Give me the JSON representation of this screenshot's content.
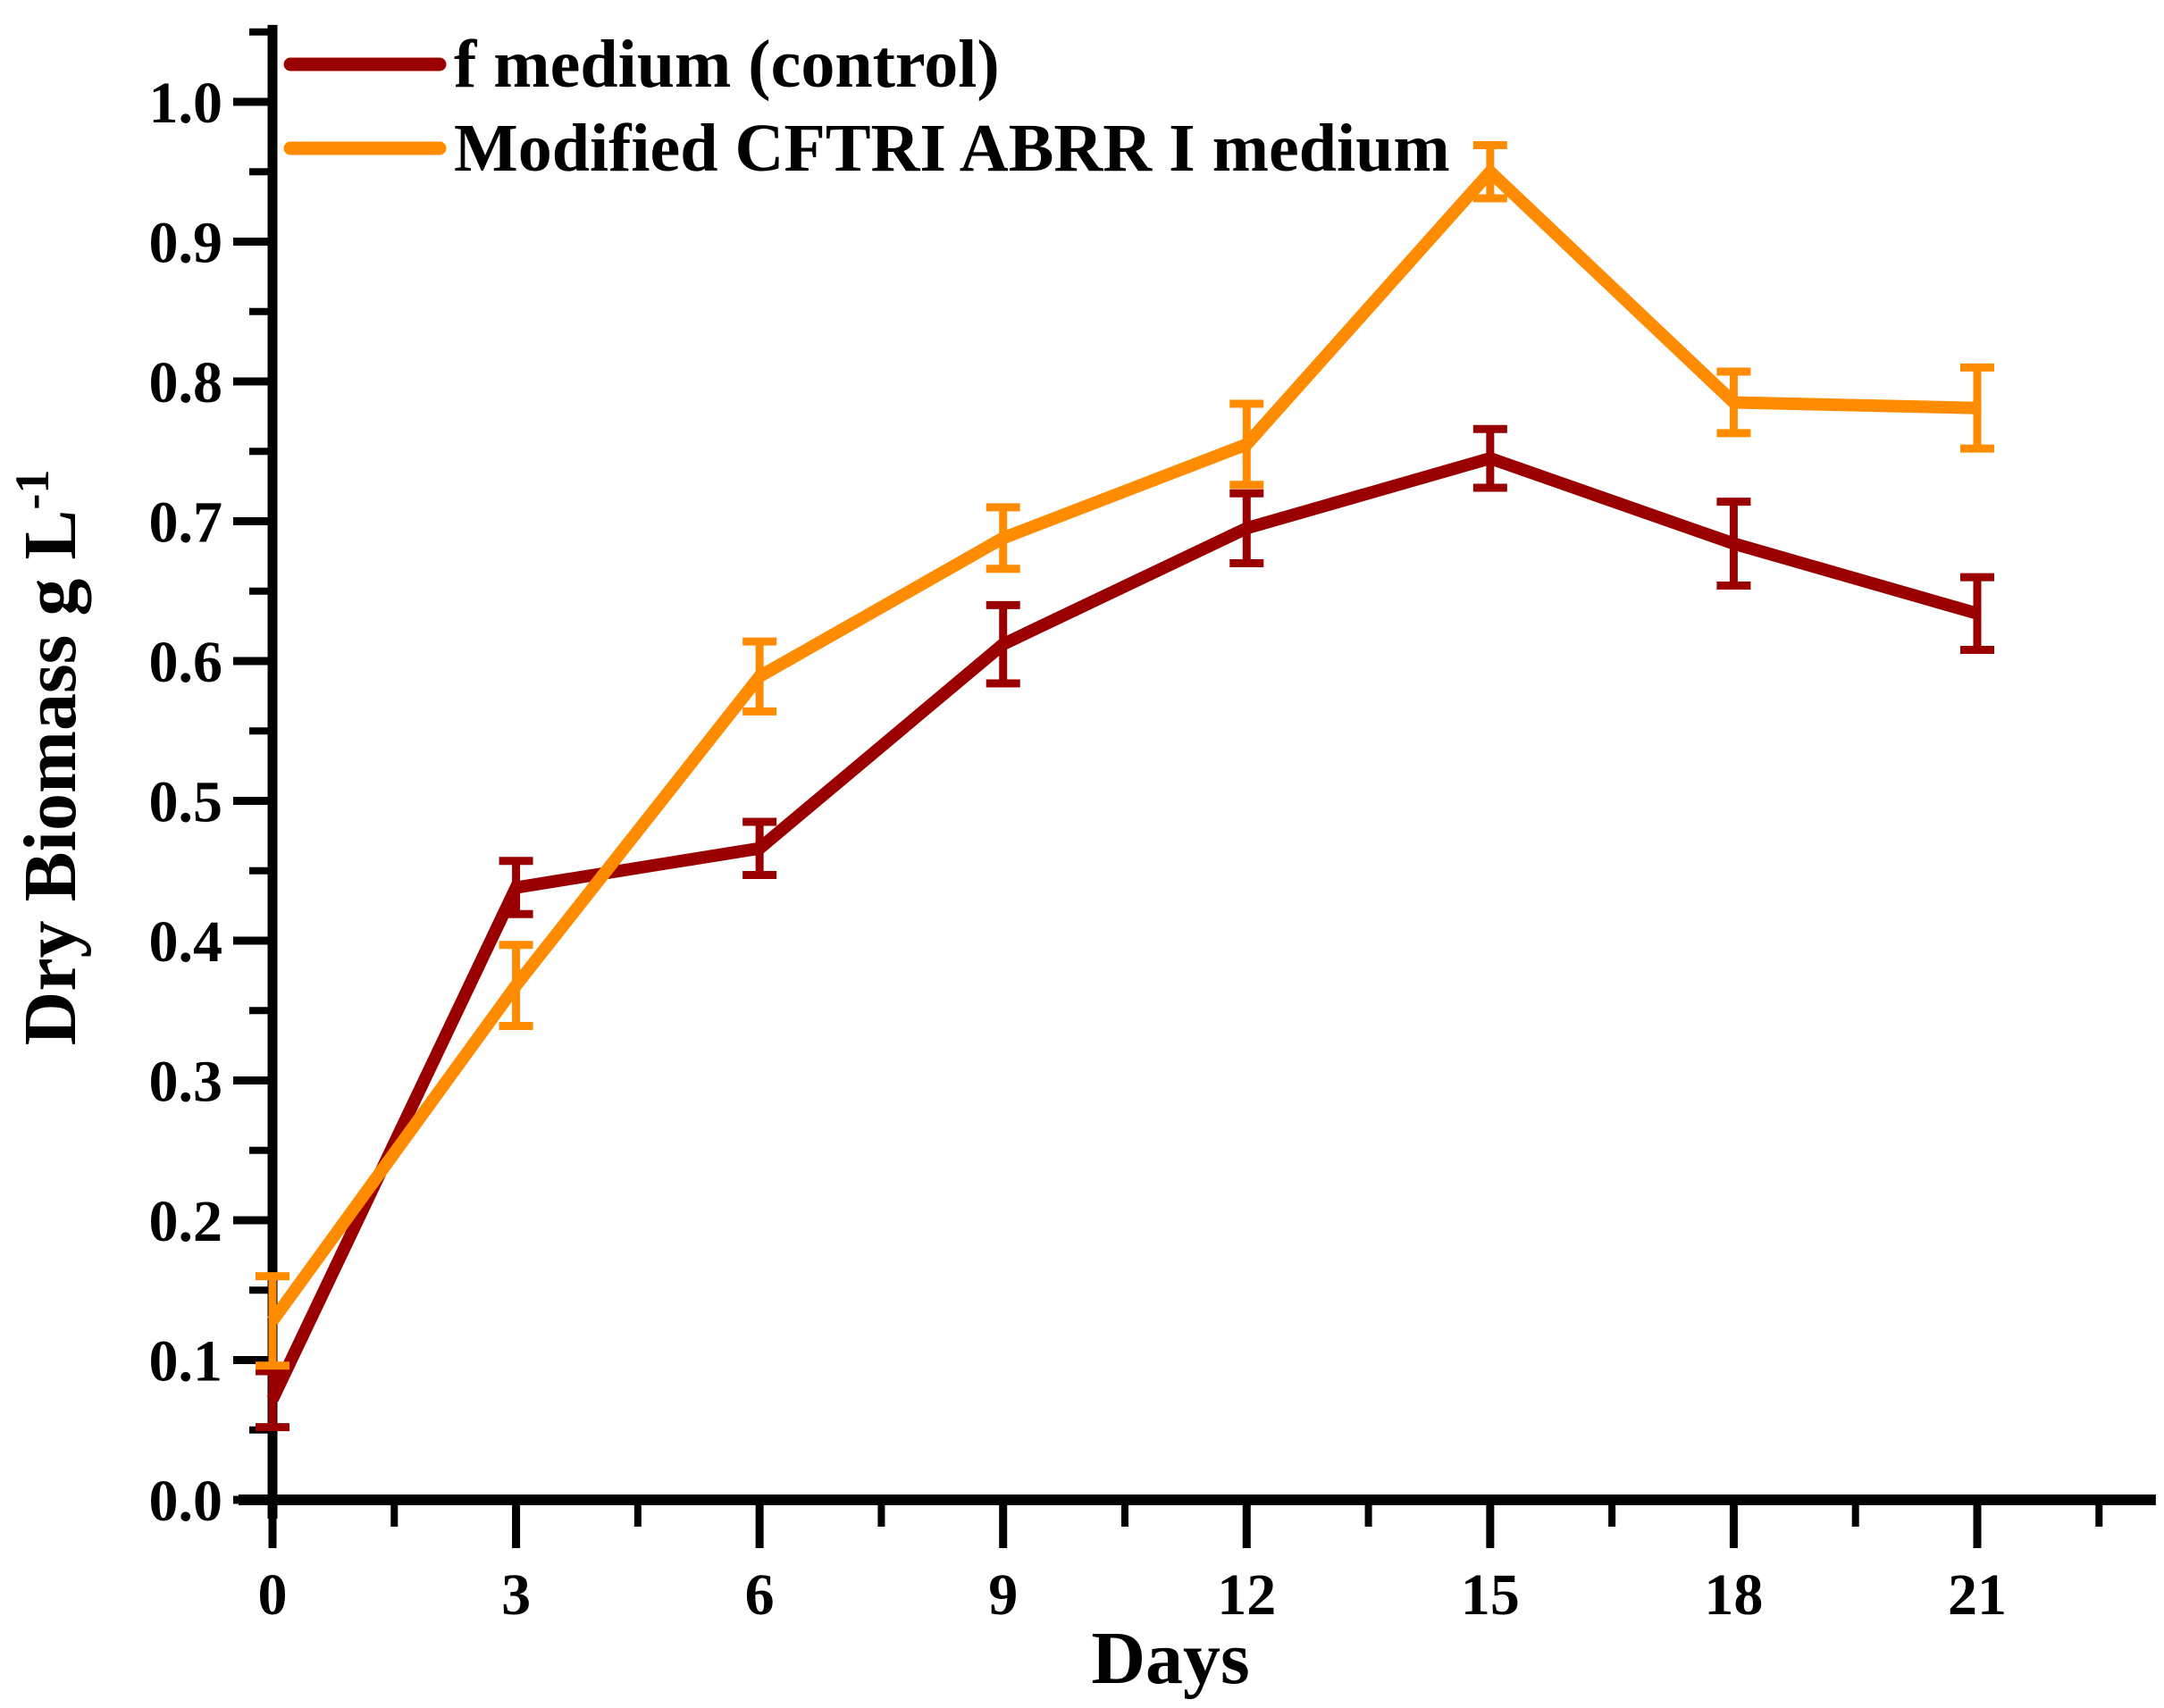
{
  "page": {
    "background_color": "#ffffff",
    "text_color": "#000000"
  },
  "chart_data": {
    "type": "line",
    "title": "",
    "xlabel": "Days",
    "ylabel": "Dry Biomass g L",
    "ylabel_superscript": "-1",
    "grid": false,
    "legend_position": "inside-top-left",
    "axis_color": "#000000",
    "xlim": [
      0,
      23.2
    ],
    "ylim": [
      0,
      1.055
    ],
    "x": [
      0,
      3,
      6,
      9,
      12,
      15,
      18,
      21
    ],
    "x_tick_labels": [
      "0",
      "3",
      "6",
      "9",
      "12",
      "15",
      "18",
      "21"
    ],
    "x_minor_ticks": [
      1.5,
      4.5,
      7.5,
      10.5,
      13.5,
      16.5,
      19.5,
      22.5
    ],
    "y_tick_values": [
      0.0,
      0.1,
      0.2,
      0.3,
      0.4,
      0.5,
      0.6,
      0.7,
      0.8,
      0.9,
      1.0
    ],
    "y_tick_labels": [
      "0.0",
      "0.1",
      "0.2",
      "0.3",
      "0.4",
      "0.5",
      "0.6",
      "0.7",
      "0.8",
      "0.9",
      "1.0"
    ],
    "y_minor_ticks": [
      0.05,
      0.15,
      0.25,
      0.35,
      0.45,
      0.55,
      0.65,
      0.75,
      0.85,
      0.95,
      1.05
    ],
    "series": [
      {
        "name": "f medium (control)",
        "color": "#9A0000",
        "values": [
          0.072,
          0.438,
          0.466,
          0.612,
          0.695,
          0.745,
          0.684,
          0.634
        ],
        "errors": [
          0.02,
          0.019,
          0.019,
          0.028,
          0.025,
          0.021,
          0.03,
          0.026
        ]
      },
      {
        "name": "Modified CFTRI ABRR I medium",
        "color": "#FF8C00",
        "values": [
          0.128,
          0.368,
          0.589,
          0.688,
          0.755,
          0.95,
          0.785,
          0.781
        ],
        "errors": [
          0.032,
          0.029,
          0.025,
          0.022,
          0.029,
          0.019,
          0.022,
          0.029
        ]
      }
    ]
  }
}
